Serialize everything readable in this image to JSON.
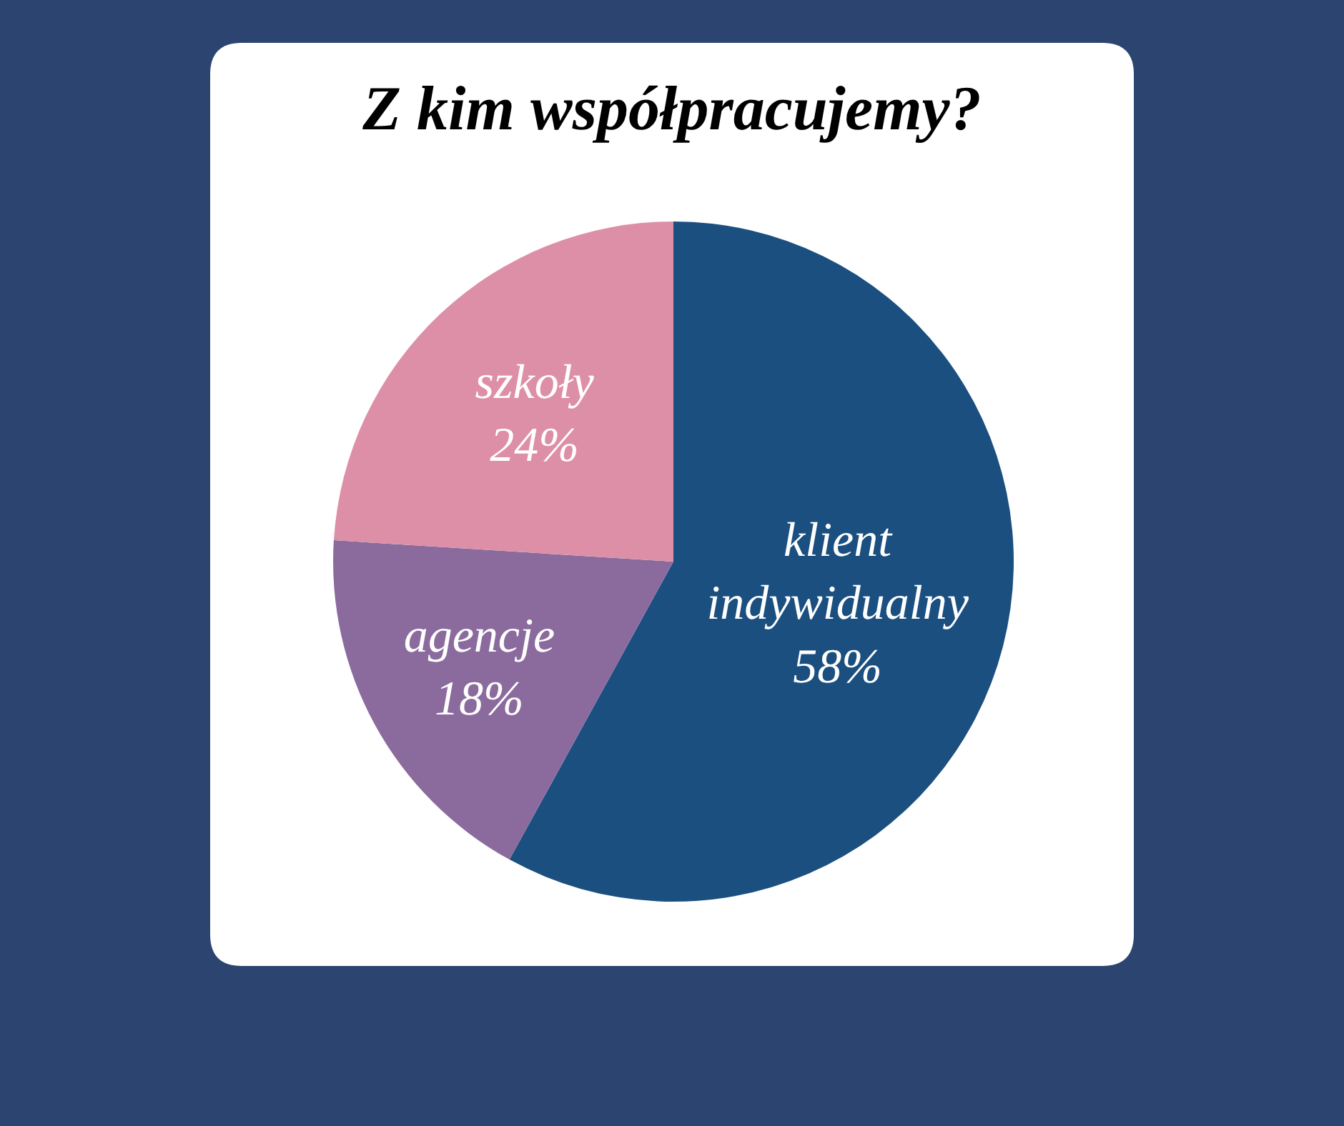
{
  "chart_data": {
    "type": "pie",
    "title": "Z kim współpracujemy?",
    "categories": [
      "klient indywidualny",
      "agencje",
      "szkoły"
    ],
    "values": [
      58,
      18,
      24
    ],
    "colors": [
      "#1a4f80",
      "#8b6b9e",
      "#de8fa8"
    ],
    "value_labels": [
      "58%",
      "18%",
      "24%"
    ]
  }
}
